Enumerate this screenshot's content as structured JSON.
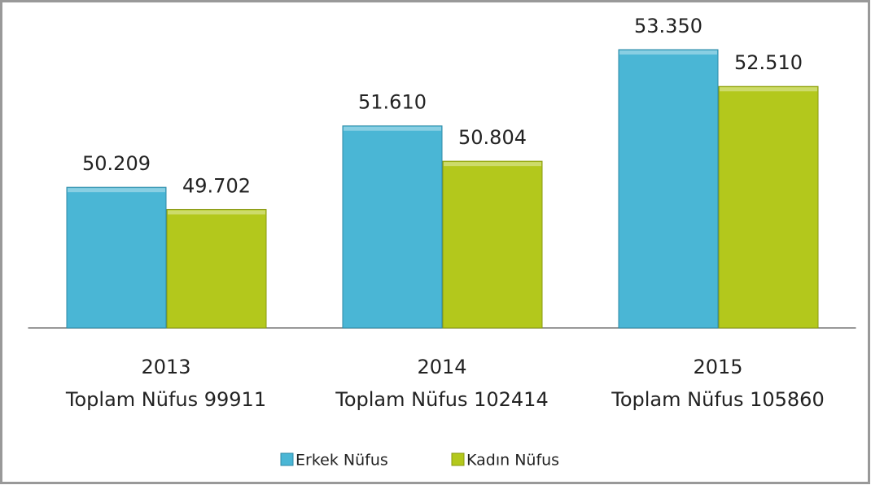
{
  "chart_data": {
    "type": "bar",
    "categories": [
      [
        "2013",
        "Toplam Nüfus 99911"
      ],
      [
        "2014",
        "Toplam Nüfus 102414"
      ],
      [
        "2015",
        "Toplam Nüfus 105860"
      ]
    ],
    "series": [
      {
        "name": "Erkek Nüfus",
        "color": "#4ab6d5",
        "values": [
          50209,
          51610,
          53350
        ],
        "value_labels": [
          "50.209",
          "51.610",
          "53.350"
        ]
      },
      {
        "name": "Kadın Nüfus",
        "color": "#b3c81c",
        "values": [
          49702,
          50804,
          52510
        ],
        "value_labels": [
          "49.702",
          "50.804",
          "52.510"
        ]
      }
    ],
    "ylim": [
      47000,
      54000
    ],
    "legend": "bottom"
  }
}
